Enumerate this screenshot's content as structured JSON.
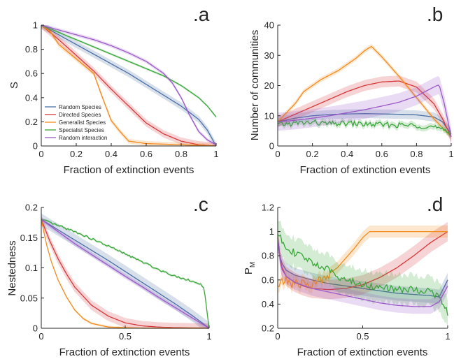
{
  "figure": {
    "colors": {
      "random_species": "#4a6fa5",
      "directed_species": "#d6383a",
      "generalist_species": "#f28c1e",
      "specialist_species": "#3aa63a",
      "random_interaction": "#9b59c7",
      "axis": "#262626"
    }
  },
  "chart_data": [
    {
      "id": "a",
      "type": "line",
      "panel_label": ".a",
      "xlabel": "Fraction of extinction events",
      "ylabel": "S",
      "xlim": [
        0,
        1
      ],
      "ylim": [
        0,
        1
      ],
      "xticks": [
        0,
        0.2,
        0.4,
        0.6,
        0.8,
        1
      ],
      "xtick_labels": [
        "0",
        "0.2",
        "0.4",
        "0.6",
        "0.8",
        "1"
      ],
      "yticks": [
        0,
        0.2,
        0.4,
        0.6,
        0.8,
        1
      ],
      "ytick_labels": [
        "0",
        "0.2",
        "0.4",
        "0.6",
        "0.8",
        "1"
      ],
      "grid": false,
      "legend": {
        "placement": "lower-left",
        "entries": [
          "Random Species",
          "Directed Species",
          "Generalist Species",
          "Specialist Species",
          "Random interaction"
        ]
      },
      "series": [
        {
          "name": "Random Species",
          "color_key": "random_species",
          "x": [
            0,
            0.1,
            0.2,
            0.3,
            0.4,
            0.5,
            0.6,
            0.7,
            0.8,
            0.9,
            0.95,
            1
          ],
          "y": [
            1,
            0.92,
            0.84,
            0.76,
            0.68,
            0.6,
            0.51,
            0.42,
            0.33,
            0.22,
            0.13,
            0
          ],
          "band": 0.03
        },
        {
          "name": "Directed Species",
          "color_key": "directed_species",
          "x": [
            0,
            0.1,
            0.2,
            0.3,
            0.4,
            0.5,
            0.6,
            0.7,
            0.8,
            0.9,
            1
          ],
          "y": [
            1,
            0.88,
            0.75,
            0.62,
            0.47,
            0.33,
            0.19,
            0.1,
            0.04,
            0.01,
            0
          ],
          "band": 0.03
        },
        {
          "name": "Generalist Species",
          "color_key": "generalist_species",
          "x": [
            0,
            0.05,
            0.1,
            0.15,
            0.2,
            0.25,
            0.3,
            0.35,
            0.4,
            0.45,
            0.5,
            0.55,
            0.6,
            0.8,
            1
          ],
          "y": [
            1,
            0.95,
            0.84,
            0.78,
            0.72,
            0.66,
            0.6,
            0.4,
            0.21,
            0.12,
            0.04,
            0.03,
            0.02,
            0.01,
            0
          ],
          "band": 0.02
        },
        {
          "name": "Specialist Species",
          "color_key": "specialist_species",
          "x": [
            0,
            0.1,
            0.2,
            0.3,
            0.4,
            0.5,
            0.6,
            0.7,
            0.8,
            0.9,
            0.95,
            1
          ],
          "y": [
            1,
            0.94,
            0.88,
            0.82,
            0.76,
            0.7,
            0.64,
            0.58,
            0.5,
            0.4,
            0.33,
            0.24
          ],
          "band": 0.01
        },
        {
          "name": "Random interaction",
          "color_key": "random_interaction",
          "x": [
            0,
            0.1,
            0.2,
            0.3,
            0.4,
            0.5,
            0.6,
            0.7,
            0.75,
            0.8,
            0.85,
            0.9,
            0.95,
            1
          ],
          "y": [
            1,
            0.96,
            0.92,
            0.88,
            0.83,
            0.77,
            0.7,
            0.6,
            0.52,
            0.4,
            0.25,
            0.12,
            0.05,
            0.01
          ],
          "band": 0.015
        }
      ]
    },
    {
      "id": "b",
      "type": "line",
      "panel_label": ".b",
      "xlabel": "Fraction of extinction events",
      "ylabel": "Number of communities",
      "xlim": [
        0,
        1
      ],
      "ylim": [
        0,
        40
      ],
      "xticks": [
        0,
        0.2,
        0.4,
        0.6,
        0.8,
        1
      ],
      "xtick_labels": [
        "0",
        "0.2",
        "0.4",
        "0.6",
        "0.8",
        "1"
      ],
      "yticks": [
        0,
        10,
        20,
        30,
        40
      ],
      "ytick_labels": [
        "0",
        "10",
        "20",
        "30",
        "40"
      ],
      "grid": false,
      "series": [
        {
          "name": "Random Species",
          "color_key": "random_species",
          "x": [
            0,
            0.1,
            0.2,
            0.3,
            0.4,
            0.5,
            0.6,
            0.7,
            0.8,
            0.9,
            0.95,
            1
          ],
          "y": [
            8,
            9.2,
            10,
            10.4,
            10.6,
            10.7,
            10.6,
            10.5,
            10.3,
            9.6,
            8,
            4
          ],
          "band": 1.5
        },
        {
          "name": "Directed Species",
          "color_key": "directed_species",
          "x": [
            0,
            0.1,
            0.2,
            0.3,
            0.4,
            0.5,
            0.6,
            0.7,
            0.8,
            0.9,
            0.95,
            1
          ],
          "y": [
            8,
            10.5,
            13,
            15.5,
            18,
            20,
            21.2,
            21.5,
            19.5,
            14,
            9,
            3
          ],
          "band": 1.8
        },
        {
          "name": "Generalist Species",
          "color_key": "generalist_species",
          "x": [
            0,
            0.05,
            0.1,
            0.15,
            0.2,
            0.25,
            0.3,
            0.35,
            0.4,
            0.45,
            0.5,
            0.54,
            0.6,
            0.7,
            0.8,
            0.9,
            1
          ],
          "y": [
            8,
            11,
            14,
            18,
            20,
            22,
            23.5,
            25,
            27,
            29,
            31.5,
            33,
            29.5,
            23,
            16,
            9,
            3
          ],
          "band": 0.8
        },
        {
          "name": "Specialist Species",
          "color_key": "specialist_species",
          "x": [
            0,
            0.1,
            0.2,
            0.3,
            0.4,
            0.5,
            0.6,
            0.7,
            0.8,
            0.9,
            1
          ],
          "y": [
            7,
            7.5,
            7.8,
            7.3,
            7.5,
            7.2,
            7.0,
            6.9,
            6.8,
            6.3,
            4
          ],
          "band": 1.0,
          "noise": 0.9
        },
        {
          "name": "Random interaction",
          "color_key": "random_interaction",
          "x": [
            0,
            0.1,
            0.2,
            0.3,
            0.4,
            0.5,
            0.6,
            0.7,
            0.8,
            0.85,
            0.9,
            0.93,
            0.96,
            1
          ],
          "y": [
            8,
            8.5,
            9.2,
            10,
            11,
            12,
            13.2,
            14.5,
            16.5,
            18,
            19.5,
            20.3,
            14,
            3
          ],
          "band": 3
        }
      ]
    },
    {
      "id": "c",
      "type": "line",
      "panel_label": ".c",
      "xlabel": "Fraction of extinction events",
      "ylabel": "Nestedness",
      "xlim": [
        0,
        1
      ],
      "ylim": [
        0,
        0.2
      ],
      "xticks": [
        0,
        0.5,
        1
      ],
      "xtick_labels": [
        "0",
        "0.5",
        "1"
      ],
      "yticks": [
        0,
        0.05,
        0.1,
        0.15,
        0.2
      ],
      "ytick_labels": [
        "0",
        "0.05",
        "0.1",
        "0.15",
        "0.2"
      ],
      "grid": false,
      "series": [
        {
          "name": "Random Species",
          "color_key": "random_species",
          "x": [
            0,
            0.1,
            0.2,
            0.3,
            0.4,
            0.5,
            0.6,
            0.7,
            0.8,
            0.9,
            1
          ],
          "y": [
            0.18,
            0.163,
            0.146,
            0.129,
            0.112,
            0.094,
            0.076,
            0.058,
            0.04,
            0.021,
            0
          ],
          "band": 0.01
        },
        {
          "name": "Directed Species",
          "color_key": "directed_species",
          "x": [
            0,
            0.05,
            0.1,
            0.15,
            0.2,
            0.3,
            0.4,
            0.5,
            0.6,
            0.7,
            0.8,
            1
          ],
          "y": [
            0.18,
            0.145,
            0.115,
            0.09,
            0.068,
            0.038,
            0.02,
            0.009,
            0.004,
            0.002,
            0.001,
            0
          ],
          "band": 0.008
        },
        {
          "name": "Generalist Species",
          "color_key": "generalist_species",
          "x": [
            0,
            0.03,
            0.06,
            0.1,
            0.15,
            0.2,
            0.25,
            0.3,
            0.4,
            0.5,
            0.6,
            1
          ],
          "y": [
            0.18,
            0.14,
            0.11,
            0.08,
            0.052,
            0.03,
            0.016,
            0.008,
            0.002,
            0.001,
            0,
            0
          ],
          "band": 0.002
        },
        {
          "name": "Specialist Species",
          "color_key": "specialist_species",
          "x": [
            0,
            0.1,
            0.2,
            0.3,
            0.4,
            0.5,
            0.6,
            0.7,
            0.8,
            0.9,
            0.95,
            0.97,
            1
          ],
          "y": [
            0.18,
            0.17,
            0.16,
            0.148,
            0.136,
            0.123,
            0.11,
            0.097,
            0.086,
            0.078,
            0.072,
            0.065,
            0
          ],
          "band": 0.002,
          "noise": 0.0015
        },
        {
          "name": "Random interaction",
          "color_key": "random_interaction",
          "x": [
            0,
            0.1,
            0.2,
            0.3,
            0.4,
            0.5,
            0.6,
            0.7,
            0.8,
            0.9,
            1
          ],
          "y": [
            0.18,
            0.16,
            0.14,
            0.122,
            0.104,
            0.086,
            0.069,
            0.051,
            0.034,
            0.017,
            0
          ],
          "band": 0.004
        }
      ]
    },
    {
      "id": "d",
      "type": "line",
      "panel_label": ".d",
      "xlabel": "Fraction of extinction events",
      "ylabel": "P_M",
      "ylabel_main": "P",
      "ylabel_sub": "M",
      "xlim": [
        0,
        1
      ],
      "ylim": [
        0.2,
        1.2
      ],
      "xticks": [
        0,
        0.5,
        1
      ],
      "xtick_labels": [
        "0",
        "0.5",
        "1"
      ],
      "yticks": [
        0.2,
        0.4,
        0.6,
        0.8,
        1,
        1.2
      ],
      "ytick_labels": [
        "0.2",
        "0.4",
        "0.6",
        "0.8",
        "1",
        "1.2"
      ],
      "grid": false,
      "series": [
        {
          "name": "Random Species",
          "color_key": "random_species",
          "x": [
            0,
            0.02,
            0.05,
            0.1,
            0.2,
            0.3,
            0.4,
            0.5,
            0.6,
            0.7,
            0.8,
            0.9,
            0.95,
            1
          ],
          "y": [
            0.9,
            0.75,
            0.68,
            0.64,
            0.6,
            0.57,
            0.55,
            0.53,
            0.51,
            0.49,
            0.48,
            0.47,
            0.46,
            0.6
          ],
          "band": 0.06
        },
        {
          "name": "Directed Species",
          "color_key": "directed_species",
          "x": [
            0,
            0.02,
            0.05,
            0.1,
            0.15,
            0.2,
            0.3,
            0.4,
            0.5,
            0.6,
            0.7,
            0.8,
            0.9,
            1
          ],
          "y": [
            0.95,
            0.72,
            0.63,
            0.58,
            0.55,
            0.53,
            0.52,
            0.53,
            0.56,
            0.62,
            0.7,
            0.8,
            0.91,
            1
          ],
          "band": 0.08
        },
        {
          "name": "Generalist Species",
          "color_key": "generalist_species",
          "x": [
            0,
            0.05,
            0.1,
            0.15,
            0.2,
            0.25,
            0.3,
            0.35,
            0.4,
            0.45,
            0.5,
            0.54,
            0.6,
            0.8,
            1
          ],
          "y": [
            0.55,
            0.6,
            0.56,
            0.58,
            0.55,
            0.6,
            0.65,
            0.7,
            0.78,
            0.86,
            0.95,
            1,
            1,
            1,
            1
          ],
          "band": 0.05,
          "noise": 0.04,
          "noise_until": 0.3
        },
        {
          "name": "Specialist Species",
          "color_key": "specialist_species",
          "x": [
            0,
            0.05,
            0.1,
            0.2,
            0.3,
            0.4,
            0.5,
            0.6,
            0.7,
            0.8,
            0.9,
            0.95,
            1
          ],
          "y": [
            0.98,
            0.88,
            0.82,
            0.75,
            0.68,
            0.6,
            0.56,
            0.54,
            0.52,
            0.52,
            0.51,
            0.45,
            0.33
          ],
          "band": 0.12,
          "noise": 0.03
        },
        {
          "name": "Random interaction",
          "color_key": "random_interaction",
          "x": [
            0,
            0.02,
            0.05,
            0.1,
            0.2,
            0.3,
            0.4,
            0.5,
            0.6,
            0.7,
            0.8,
            0.9,
            0.95,
            1
          ],
          "y": [
            0.95,
            0.7,
            0.63,
            0.58,
            0.53,
            0.5,
            0.47,
            0.44,
            0.41,
            0.39,
            0.38,
            0.38,
            0.42,
            0.55
          ],
          "band": 0.06
        }
      ]
    }
  ]
}
